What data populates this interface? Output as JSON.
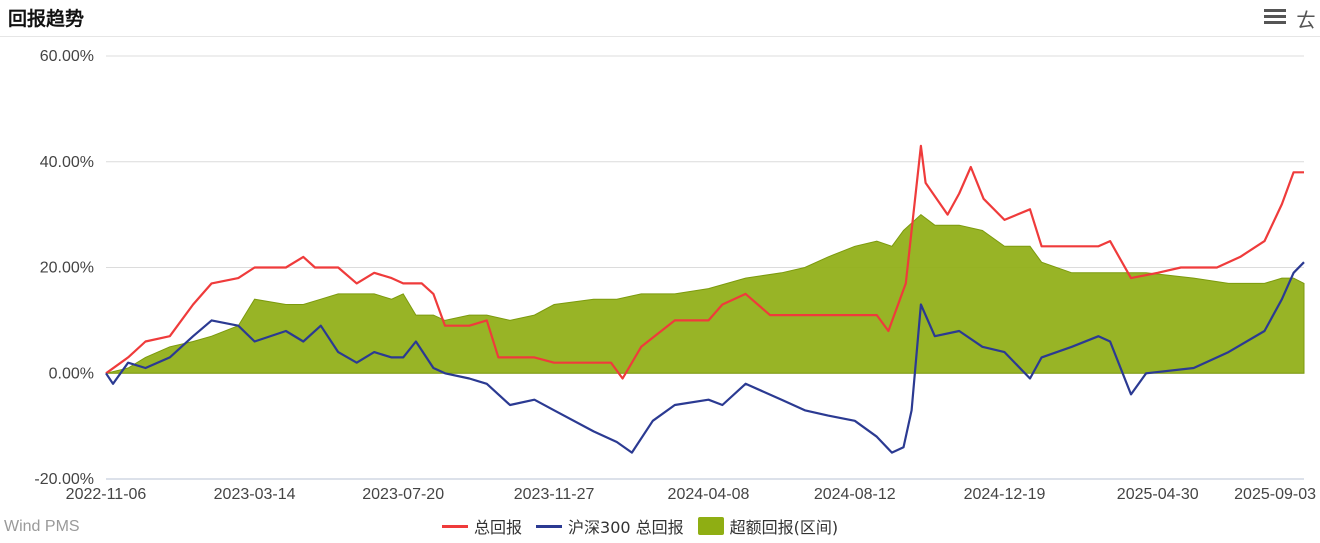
{
  "header": {
    "title": "回报趋势"
  },
  "watermark": "Wind PMS",
  "colors": {
    "total": "#ef3b3b",
    "index": "#2b3a92",
    "excess_fill": "#8fae13",
    "excess_line": "#7c9a0d",
    "grid": "#dcdcdc"
  },
  "chart_data": {
    "type": "line",
    "xlabel": "",
    "ylabel": "",
    "x_ticks": [
      "2022-11-06",
      "2023-03-14",
      "2023-07-20",
      "2023-11-27",
      "2024-04-08",
      "2024-08-12",
      "2024-12-19",
      "2025-04-30",
      "2025-09-03"
    ],
    "y_ticks": [
      "60.00%",
      "40.00%",
      "20.00%",
      "0.00%",
      "-20.00%"
    ],
    "ylim": [
      -20,
      60
    ],
    "grid": true,
    "legend_position": "bottom",
    "series": [
      {
        "name": "总回报",
        "color": "#ef3b3b",
        "points": [
          [
            "2022-11-06",
            0
          ],
          [
            "2022-11-25",
            3
          ],
          [
            "2022-12-10",
            6
          ],
          [
            "2022-12-31",
            7
          ],
          [
            "2023-01-20",
            13
          ],
          [
            "2023-02-05",
            17
          ],
          [
            "2023-02-28",
            18
          ],
          [
            "2023-03-14",
            20
          ],
          [
            "2023-04-10",
            20
          ],
          [
            "2023-04-25",
            22
          ],
          [
            "2023-05-05",
            20
          ],
          [
            "2023-05-25",
            20
          ],
          [
            "2023-06-10",
            17
          ],
          [
            "2023-06-25",
            19
          ],
          [
            "2023-07-10",
            18
          ],
          [
            "2023-07-20",
            17
          ],
          [
            "2023-08-05",
            17
          ],
          [
            "2023-08-15",
            15
          ],
          [
            "2023-08-25",
            9
          ],
          [
            "2023-09-15",
            9
          ],
          [
            "2023-09-30",
            10
          ],
          [
            "2023-10-10",
            3
          ],
          [
            "2023-11-10",
            3
          ],
          [
            "2023-11-27",
            2
          ],
          [
            "2024-01-15",
            2
          ],
          [
            "2024-01-25",
            -1
          ],
          [
            "2024-02-10",
            5
          ],
          [
            "2024-03-10",
            10
          ],
          [
            "2024-04-08",
            10
          ],
          [
            "2024-04-20",
            13
          ],
          [
            "2024-05-10",
            15
          ],
          [
            "2024-05-31",
            11
          ],
          [
            "2024-06-30",
            11
          ],
          [
            "2024-07-31",
            11
          ],
          [
            "2024-08-12",
            11
          ],
          [
            "2024-08-31",
            11
          ],
          [
            "2024-09-10",
            8
          ],
          [
            "2024-09-25",
            17
          ],
          [
            "2024-09-30",
            27
          ],
          [
            "2024-10-08",
            43
          ],
          [
            "2024-10-12",
            36
          ],
          [
            "2024-10-31",
            30
          ],
          [
            "2024-11-10",
            34
          ],
          [
            "2024-11-20",
            39
          ],
          [
            "2024-12-01",
            33
          ],
          [
            "2024-12-19",
            29
          ],
          [
            "2025-01-10",
            31
          ],
          [
            "2025-01-20",
            24
          ],
          [
            "2025-02-15",
            24
          ],
          [
            "2025-03-10",
            24
          ],
          [
            "2025-03-20",
            25
          ],
          [
            "2025-04-07",
            18
          ],
          [
            "2025-04-30",
            19
          ],
          [
            "2025-05-20",
            20
          ],
          [
            "2025-06-20",
            20
          ],
          [
            "2025-07-10",
            22
          ],
          [
            "2025-07-31",
            25
          ],
          [
            "2025-08-15",
            32
          ],
          [
            "2025-08-25",
            38
          ],
          [
            "2025-09-03",
            38
          ]
        ]
      },
      {
        "name": "沪深300 总回报",
        "color": "#2b3a92",
        "points": [
          [
            "2022-11-06",
            0
          ],
          [
            "2022-11-12",
            -2
          ],
          [
            "2022-11-25",
            2
          ],
          [
            "2022-12-10",
            1
          ],
          [
            "2022-12-31",
            3
          ],
          [
            "2023-01-20",
            7
          ],
          [
            "2023-02-05",
            10
          ],
          [
            "2023-02-28",
            9
          ],
          [
            "2023-03-14",
            6
          ],
          [
            "2023-04-10",
            8
          ],
          [
            "2023-04-25",
            6
          ],
          [
            "2023-05-10",
            9
          ],
          [
            "2023-05-25",
            4
          ],
          [
            "2023-06-10",
            2
          ],
          [
            "2023-06-25",
            4
          ],
          [
            "2023-07-10",
            3
          ],
          [
            "2023-07-20",
            3
          ],
          [
            "2023-07-31",
            6
          ],
          [
            "2023-08-15",
            1
          ],
          [
            "2023-08-25",
            0
          ],
          [
            "2023-09-15",
            -1
          ],
          [
            "2023-09-30",
            -2
          ],
          [
            "2023-10-20",
            -6
          ],
          [
            "2023-11-10",
            -5
          ],
          [
            "2023-11-27",
            -7
          ],
          [
            "2023-12-31",
            -11
          ],
          [
            "2024-01-20",
            -13
          ],
          [
            "2024-02-02",
            -15
          ],
          [
            "2024-02-20",
            -9
          ],
          [
            "2024-03-10",
            -6
          ],
          [
            "2024-04-08",
            -5
          ],
          [
            "2024-04-20",
            -6
          ],
          [
            "2024-05-10",
            -2
          ],
          [
            "2024-06-10",
            -5
          ],
          [
            "2024-06-30",
            -7
          ],
          [
            "2024-07-20",
            -8
          ],
          [
            "2024-08-12",
            -9
          ],
          [
            "2024-08-31",
            -12
          ],
          [
            "2024-09-13",
            -15
          ],
          [
            "2024-09-23",
            -14
          ],
          [
            "2024-09-30",
            -7
          ],
          [
            "2024-10-08",
            13
          ],
          [
            "2024-10-20",
            7
          ],
          [
            "2024-11-10",
            8
          ],
          [
            "2024-11-30",
            5
          ],
          [
            "2024-12-19",
            4
          ],
          [
            "2025-01-10",
            -1
          ],
          [
            "2025-01-20",
            3
          ],
          [
            "2025-02-15",
            5
          ],
          [
            "2025-03-10",
            7
          ],
          [
            "2025-03-20",
            6
          ],
          [
            "2025-04-07",
            -4
          ],
          [
            "2025-04-20",
            0
          ],
          [
            "2025-05-31",
            1
          ],
          [
            "2025-06-30",
            4
          ],
          [
            "2025-07-31",
            8
          ],
          [
            "2025-08-15",
            14
          ],
          [
            "2025-08-25",
            19
          ],
          [
            "2025-09-03",
            21
          ]
        ]
      },
      {
        "name": "超额回报(区间)",
        "color": "#8fae13",
        "type": "area",
        "points": [
          [
            "2022-11-06",
            0
          ],
          [
            "2022-11-25",
            1
          ],
          [
            "2022-12-10",
            3
          ],
          [
            "2022-12-31",
            5
          ],
          [
            "2023-01-20",
            6
          ],
          [
            "2023-02-05",
            7
          ],
          [
            "2023-02-28",
            9
          ],
          [
            "2023-03-14",
            14
          ],
          [
            "2023-04-10",
            13
          ],
          [
            "2023-04-25",
            13
          ],
          [
            "2023-05-10",
            14
          ],
          [
            "2023-05-25",
            15
          ],
          [
            "2023-06-10",
            15
          ],
          [
            "2023-06-25",
            15
          ],
          [
            "2023-07-10",
            14
          ],
          [
            "2023-07-20",
            15
          ],
          [
            "2023-07-31",
            11
          ],
          [
            "2023-08-15",
            11
          ],
          [
            "2023-08-25",
            10
          ],
          [
            "2023-09-15",
            11
          ],
          [
            "2023-09-30",
            11
          ],
          [
            "2023-10-20",
            10
          ],
          [
            "2023-11-10",
            11
          ],
          [
            "2023-11-27",
            13
          ],
          [
            "2023-12-31",
            14
          ],
          [
            "2024-01-20",
            14
          ],
          [
            "2024-02-10",
            15
          ],
          [
            "2024-03-10",
            15
          ],
          [
            "2024-04-08",
            16
          ],
          [
            "2024-05-10",
            18
          ],
          [
            "2024-06-10",
            19
          ],
          [
            "2024-06-30",
            20
          ],
          [
            "2024-07-20",
            22
          ],
          [
            "2024-08-12",
            24
          ],
          [
            "2024-08-31",
            25
          ],
          [
            "2024-09-13",
            24
          ],
          [
            "2024-09-23",
            27
          ],
          [
            "2024-10-08",
            30
          ],
          [
            "2024-10-20",
            28
          ],
          [
            "2024-11-10",
            28
          ],
          [
            "2024-11-30",
            27
          ],
          [
            "2024-12-19",
            24
          ],
          [
            "2025-01-10",
            24
          ],
          [
            "2025-01-20",
            21
          ],
          [
            "2025-02-15",
            19
          ],
          [
            "2025-03-10",
            19
          ],
          [
            "2025-04-07",
            19
          ],
          [
            "2025-04-20",
            19
          ],
          [
            "2025-05-31",
            18
          ],
          [
            "2025-06-30",
            17
          ],
          [
            "2025-07-31",
            17
          ],
          [
            "2025-08-15",
            18
          ],
          [
            "2025-08-25",
            18
          ],
          [
            "2025-09-03",
            17
          ]
        ]
      }
    ]
  }
}
